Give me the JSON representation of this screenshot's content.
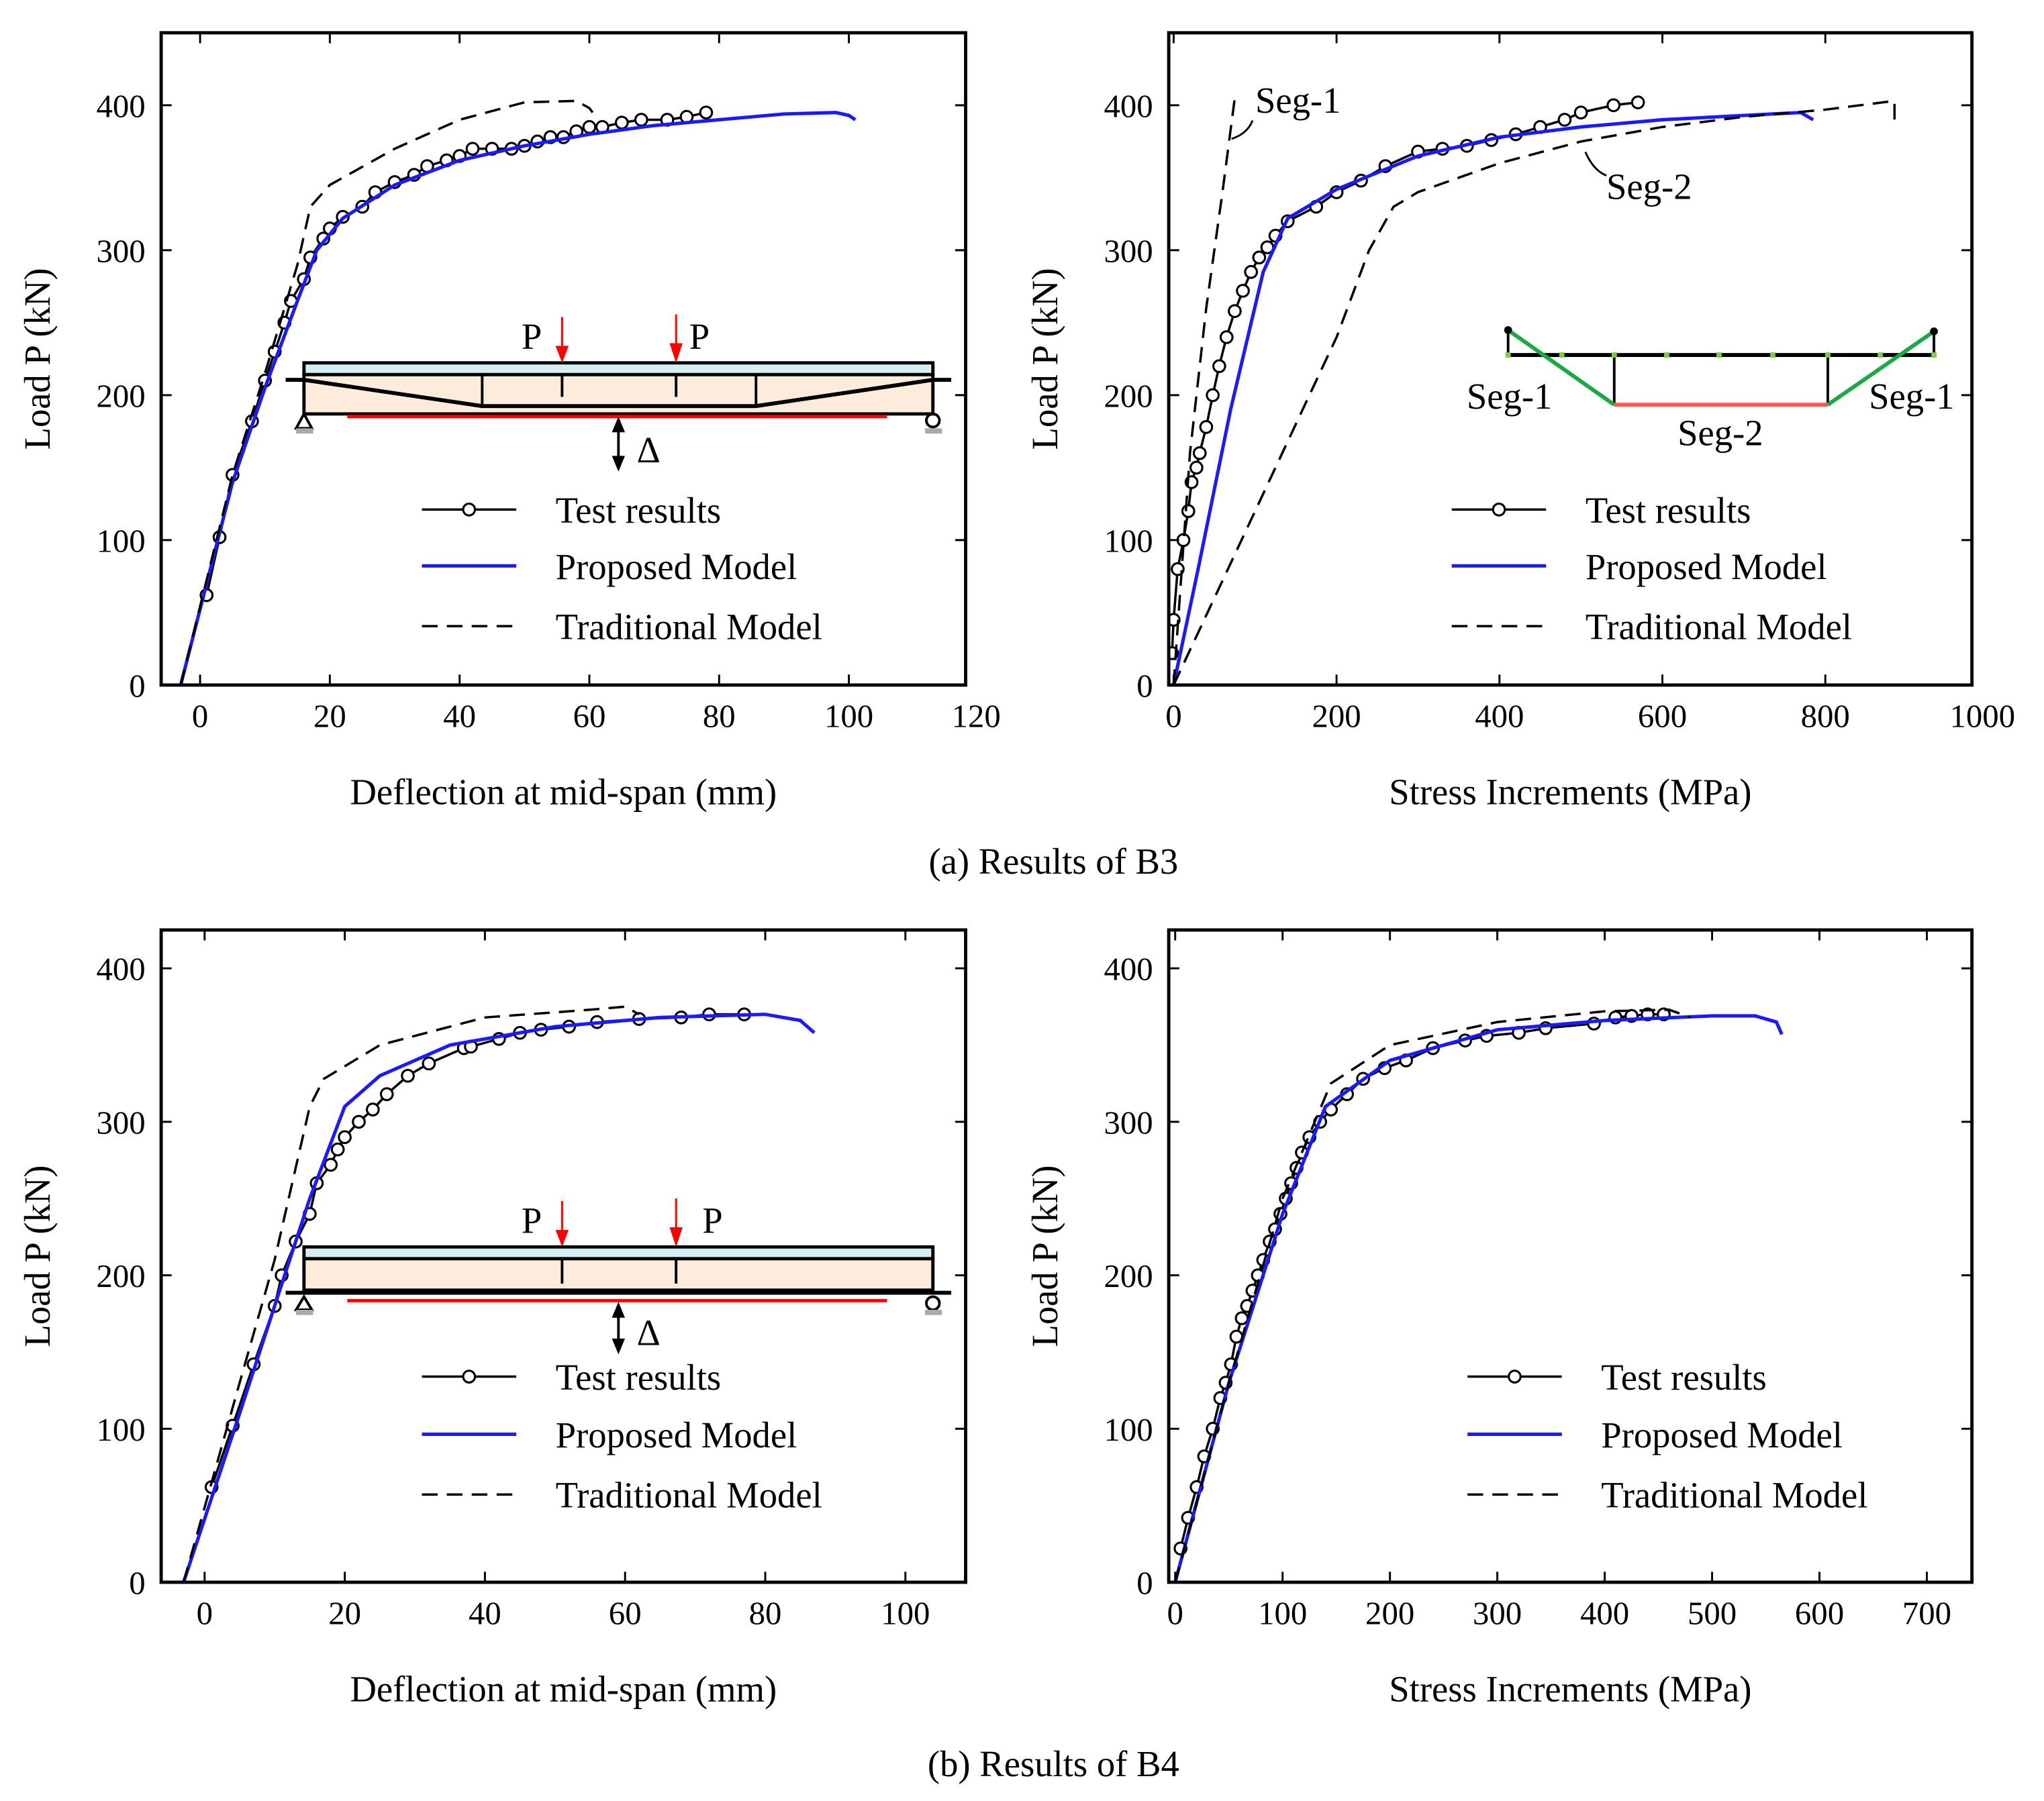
{
  "captions": {
    "a": "(a) Results of B3",
    "b": "(b) Results of B4"
  },
  "colors": {
    "test": "#000000",
    "proposed": "#1a1aff",
    "traditional": "#000000",
    "load_arrow": "#ff0000",
    "slab": "#d5eef2",
    "web": "#fdebdc",
    "seg1": "#1aaa44",
    "seg2": "#ff5555"
  },
  "legend": {
    "test": "Test results",
    "proposed": "Proposed Model",
    "traditional": "Traditional Model"
  },
  "insets": {
    "load_label": "P",
    "delta_label": "Δ",
    "seg1": "Seg-1",
    "seg2": "Seg-2"
  },
  "chart_data": [
    {
      "id": "a-left",
      "type": "line",
      "title": "",
      "xlabel": "Deflection at mid-span (mm)",
      "ylabel": "Load P (kN)",
      "xlim": [
        -6,
        118
      ],
      "ylim": [
        0,
        450
      ],
      "xticks": [
        0,
        20,
        40,
        60,
        80,
        100,
        120
      ],
      "yticks": [
        0,
        100,
        200,
        300,
        400
      ],
      "legend_position": "bottom-right",
      "series": [
        {
          "name": "Test results",
          "style": "markers-line",
          "x": [
            1,
            3,
            5,
            8,
            10,
            11.5,
            13,
            14,
            16,
            17,
            19,
            20,
            22,
            25,
            27,
            30,
            33,
            35,
            38,
            40,
            42,
            45,
            48,
            50,
            52,
            54,
            56,
            58,
            60,
            62,
            65,
            68,
            72,
            75,
            78
          ],
          "y": [
            62,
            102,
            145,
            182,
            210,
            230,
            250,
            265,
            280,
            295,
            308,
            315,
            323,
            330,
            340,
            347,
            352,
            358,
            362,
            365,
            370,
            370,
            370,
            372,
            375,
            378,
            378,
            382,
            385,
            385,
            388,
            390,
            390,
            392,
            395
          ]
        },
        {
          "name": "Proposed Model",
          "style": "solid",
          "x": [
            -3,
            5,
            10,
            15,
            18,
            22,
            30,
            40,
            50,
            60,
            70,
            80,
            90,
            98,
            100,
            101
          ],
          "y": [
            0,
            140,
            205,
            265,
            300,
            322,
            345,
            362,
            372,
            380,
            386,
            390,
            394,
            395,
            393,
            390
          ]
        },
        {
          "name": "Traditional Model",
          "style": "dashed",
          "x": [
            -3,
            5,
            10,
            15,
            17,
            20,
            30,
            40,
            50,
            58,
            60,
            60.5
          ],
          "y": [
            0,
            145,
            215,
            290,
            330,
            345,
            370,
            390,
            402,
            403,
            398,
            395
          ]
        }
      ]
    },
    {
      "id": "a-right",
      "type": "line",
      "title": "",
      "xlabel": "Stress Increments (MPa)",
      "ylabel": "Load P (kN)",
      "xlim": [
        -6,
        980
      ],
      "ylim": [
        0,
        450
      ],
      "xticks": [
        0,
        200,
        400,
        600,
        800,
        1000
      ],
      "yticks": [
        0,
        100,
        200,
        300,
        400
      ],
      "legend_position": "bottom-right",
      "annotations": [
        "Seg-1",
        "Seg-2"
      ],
      "series": [
        {
          "name": "Test results",
          "style": "markers-line",
          "x": [
            -2,
            0,
            5,
            12,
            18,
            22,
            28,
            32,
            40,
            48,
            56,
            65,
            75,
            85,
            95,
            105,
            115,
            125,
            140,
            175,
            200,
            230,
            260,
            300,
            330,
            360,
            390,
            420,
            450,
            480,
            500,
            540,
            570
          ],
          "y": [
            22,
            45,
            80,
            100,
            120,
            140,
            150,
            160,
            178,
            200,
            220,
            240,
            258,
            272,
            285,
            295,
            302,
            310,
            320,
            330,
            340,
            348,
            358,
            368,
            370,
            372,
            376,
            380,
            385,
            390,
            395,
            400,
            402
          ]
        },
        {
          "name": "Proposed Model",
          "style": "solid",
          "x": [
            0,
            30,
            70,
            110,
            140,
            200,
            300,
            400,
            500,
            600,
            700,
            770,
            785
          ],
          "y": [
            0,
            80,
            190,
            285,
            322,
            342,
            365,
            378,
            385,
            390,
            393,
            395,
            390
          ]
        },
        {
          "name": "Traditional Model (Seg-1)",
          "style": "dashed",
          "x": [
            0,
            20,
            40,
            60,
            75
          ],
          "y": [
            0,
            160,
            260,
            340,
            405
          ]
        },
        {
          "name": "Traditional Model (Seg-2)",
          "style": "dashed",
          "x": [
            0,
            100,
            200,
            240,
            270,
            300,
            400,
            500,
            600,
            700,
            800,
            885,
            885
          ],
          "y": [
            0,
            120,
            240,
            300,
            330,
            340,
            360,
            375,
            385,
            392,
            397,
            403,
            390
          ]
        }
      ]
    },
    {
      "id": "b-left",
      "type": "line",
      "title": "",
      "xlabel": "Deflection at mid-span (mm)",
      "ylabel": "Load P (kN)",
      "xlim": [
        -6.2,
        108.6
      ],
      "ylim": [
        0,
        425
      ],
      "xticks": [
        0,
        20,
        40,
        60,
        80,
        100
      ],
      "yticks": [
        0,
        100,
        200,
        300,
        400
      ],
      "legend_position": "bottom-right",
      "series": [
        {
          "name": "Test results",
          "style": "markers-line",
          "x": [
            1,
            4,
            7,
            10,
            11,
            13,
            15,
            16,
            18,
            19,
            20,
            22,
            24,
            26,
            29,
            32,
            37,
            38,
            42,
            45,
            48,
            52,
            56,
            62,
            68,
            72,
            77
          ],
          "y": [
            62,
            102,
            142,
            180,
            200,
            222,
            240,
            260,
            272,
            282,
            290,
            300,
            308,
            318,
            330,
            338,
            348,
            349,
            354,
            358,
            360,
            362,
            365,
            367,
            368,
            370,
            370
          ]
        },
        {
          "name": "Proposed Model",
          "style": "solid",
          "x": [
            -3,
            5,
            10,
            15,
            20,
            25,
            35,
            50,
            65,
            80,
            85,
            87
          ],
          "y": [
            0,
            110,
            180,
            250,
            310,
            330,
            350,
            362,
            368,
            370,
            366,
            358
          ]
        },
        {
          "name": "Traditional Model",
          "style": "dashed",
          "x": [
            -3,
            5,
            10,
            15,
            17,
            25,
            40,
            55,
            60,
            62
          ],
          "y": [
            0,
            130,
            210,
            310,
            328,
            350,
            368,
            373,
            375,
            370
          ]
        }
      ]
    },
    {
      "id": "b-right",
      "type": "line",
      "title": "",
      "xlabel": "Stress Increments (MPa)",
      "ylabel": "Load P (kN)",
      "xlim": [
        -6,
        742
      ],
      "ylim": [
        0,
        425
      ],
      "xticks": [
        0,
        100,
        200,
        300,
        400,
        500,
        600,
        700
      ],
      "yticks": [
        0,
        100,
        200,
        300,
        400
      ],
      "legend_position": "bottom-right",
      "series": [
        {
          "name": "Test results",
          "style": "markers-line",
          "x": [
            5,
            12,
            20,
            27,
            35,
            42,
            47,
            52,
            57,
            62,
            67,
            72,
            77,
            82,
            88,
            93,
            98,
            103,
            108,
            113,
            118,
            125,
            135,
            145,
            160,
            175,
            195,
            215,
            240,
            270,
            290,
            320,
            345,
            390,
            410,
            425,
            440,
            455
          ],
          "y": [
            22,
            42,
            62,
            82,
            100,
            120,
            130,
            142,
            160,
            172,
            180,
            190,
            200,
            210,
            222,
            230,
            240,
            250,
            260,
            270,
            280,
            290,
            300,
            308,
            318,
            328,
            335,
            340,
            348,
            353,
            356,
            358,
            361,
            364,
            368,
            369,
            370,
            370
          ]
        },
        {
          "name": "Proposed Model",
          "style": "solid",
          "x": [
            0,
            50,
            100,
            140,
            200,
            300,
            400,
            500,
            540,
            560,
            565
          ],
          "y": [
            0,
            130,
            240,
            310,
            340,
            360,
            366,
            369,
            369,
            365,
            357
          ]
        },
        {
          "name": "Traditional Model",
          "style": "dashed",
          "x": [
            0,
            50,
            100,
            145,
            200,
            300,
            400,
            460,
            480
          ],
          "y": [
            0,
            130,
            250,
            325,
            350,
            365,
            372,
            373,
            368
          ]
        }
      ]
    }
  ]
}
